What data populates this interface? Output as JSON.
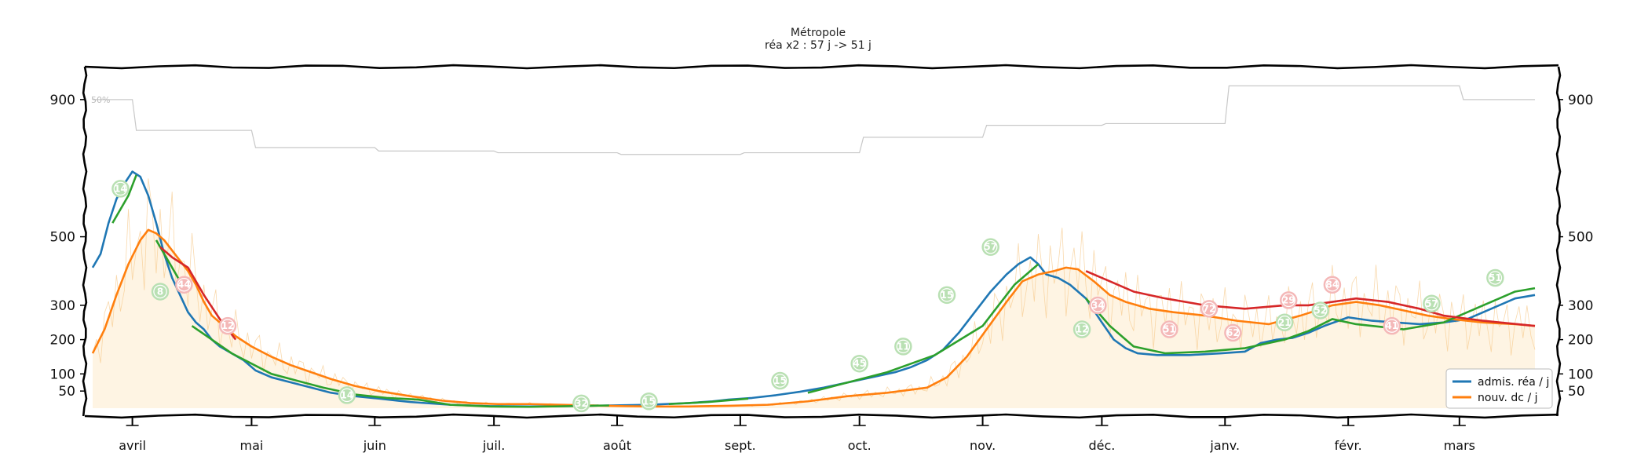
{
  "chart_data": {
    "type": "line",
    "title": "Métropole",
    "subtitle": "réa x2 : 57 j -> 51 j",
    "ylim": [
      0,
      950
    ],
    "yticks": [
      50,
      100,
      200,
      300,
      500,
      900
    ],
    "ytick_labels": [
      "50",
      "100",
      "200",
      "300",
      "500",
      "900"
    ],
    "months": [
      "avril",
      "mai",
      "juin",
      "juil.",
      "août",
      "sept.",
      "oct.",
      "nov.",
      "déc.",
      "janv.",
      "févr.",
      "mars"
    ],
    "x_start_day": 0,
    "x_end_day": 363,
    "month_start_days": [
      10,
      40,
      71,
      101,
      132,
      163,
      193,
      224,
      254,
      285,
      316,
      344
    ],
    "reference_label": "50%",
    "reference_line": [
      [
        0,
        900
      ],
      [
        10,
        900
      ],
      [
        11,
        810
      ],
      [
        40,
        810
      ],
      [
        41,
        760
      ],
      [
        71,
        760
      ],
      [
        72,
        750
      ],
      [
        101,
        750
      ],
      [
        102,
        745
      ],
      [
        132,
        745
      ],
      [
        133,
        740
      ],
      [
        163,
        740
      ],
      [
        164,
        745
      ],
      [
        193,
        745
      ],
      [
        194,
        790
      ],
      [
        224,
        790
      ],
      [
        225,
        825
      ],
      [
        254,
        825
      ],
      [
        255,
        830
      ],
      [
        285,
        830
      ],
      [
        286,
        940
      ],
      [
        344,
        940
      ],
      [
        345,
        900
      ],
      [
        363,
        900
      ]
    ],
    "daily_deaths_label": "nouv. dc / j (daily)",
    "series": [
      {
        "name": "admis. réa / j",
        "color": "#1f77b4",
        "points": [
          [
            0,
            410
          ],
          [
            2,
            450
          ],
          [
            4,
            540
          ],
          [
            6,
            610
          ],
          [
            8,
            655
          ],
          [
            10,
            690
          ],
          [
            12,
            675
          ],
          [
            14,
            620
          ],
          [
            16,
            540
          ],
          [
            18,
            450
          ],
          [
            20,
            380
          ],
          [
            22,
            330
          ],
          [
            24,
            280
          ],
          [
            26,
            250
          ],
          [
            28,
            230
          ],
          [
            30,
            200
          ],
          [
            32,
            180
          ],
          [
            35,
            160
          ],
          [
            38,
            140
          ],
          [
            41,
            110
          ],
          [
            45,
            90
          ],
          [
            50,
            75
          ],
          [
            55,
            60
          ],
          [
            60,
            45
          ],
          [
            66,
            35
          ],
          [
            72,
            28
          ],
          [
            80,
            18
          ],
          [
            90,
            10
          ],
          [
            100,
            6
          ],
          [
            110,
            5
          ],
          [
            120,
            6
          ],
          [
            130,
            8
          ],
          [
            140,
            10
          ],
          [
            150,
            15
          ],
          [
            156,
            20
          ],
          [
            160,
            25
          ],
          [
            166,
            30
          ],
          [
            172,
            38
          ],
          [
            178,
            48
          ],
          [
            184,
            60
          ],
          [
            190,
            75
          ],
          [
            196,
            90
          ],
          [
            202,
            105
          ],
          [
            206,
            120
          ],
          [
            210,
            140
          ],
          [
            214,
            170
          ],
          [
            218,
            220
          ],
          [
            222,
            280
          ],
          [
            226,
            340
          ],
          [
            230,
            390
          ],
          [
            233,
            420
          ],
          [
            236,
            440
          ],
          [
            238,
            420
          ],
          [
            240,
            390
          ],
          [
            243,
            380
          ],
          [
            246,
            360
          ],
          [
            250,
            320
          ],
          [
            254,
            250
          ],
          [
            257,
            200
          ],
          [
            260,
            175
          ],
          [
            263,
            160
          ],
          [
            268,
            155
          ],
          [
            276,
            155
          ],
          [
            284,
            160
          ],
          [
            290,
            165
          ],
          [
            294,
            190
          ],
          [
            298,
            200
          ],
          [
            302,
            205
          ],
          [
            306,
            220
          ],
          [
            310,
            240
          ],
          [
            316,
            265
          ],
          [
            322,
            255
          ],
          [
            328,
            250
          ],
          [
            334,
            245
          ],
          [
            340,
            250
          ],
          [
            346,
            260
          ],
          [
            352,
            290
          ],
          [
            358,
            320
          ],
          [
            363,
            330
          ]
        ]
      },
      {
        "name": "nouv. dc / j",
        "color": "#ff7f0e",
        "points": [
          [
            0,
            160
          ],
          [
            3,
            230
          ],
          [
            6,
            330
          ],
          [
            9,
            420
          ],
          [
            12,
            490
          ],
          [
            14,
            520
          ],
          [
            16,
            510
          ],
          [
            18,
            490
          ],
          [
            20,
            460
          ],
          [
            22,
            430
          ],
          [
            24,
            400
          ],
          [
            26,
            360
          ],
          [
            28,
            310
          ],
          [
            30,
            270
          ],
          [
            33,
            240
          ],
          [
            36,
            210
          ],
          [
            40,
            180
          ],
          [
            45,
            150
          ],
          [
            50,
            125
          ],
          [
            55,
            105
          ],
          [
            60,
            85
          ],
          [
            66,
            65
          ],
          [
            72,
            50
          ],
          [
            80,
            35
          ],
          [
            88,
            22
          ],
          [
            95,
            15
          ],
          [
            102,
            12
          ],
          [
            110,
            12
          ],
          [
            118,
            10
          ],
          [
            126,
            8
          ],
          [
            134,
            6
          ],
          [
            142,
            5
          ],
          [
            150,
            5
          ],
          [
            160,
            7
          ],
          [
            170,
            10
          ],
          [
            180,
            20
          ],
          [
            190,
            35
          ],
          [
            200,
            45
          ],
          [
            210,
            60
          ],
          [
            215,
            90
          ],
          [
            220,
            150
          ],
          [
            225,
            230
          ],
          [
            230,
            310
          ],
          [
            234,
            370
          ],
          [
            238,
            390
          ],
          [
            242,
            400
          ],
          [
            245,
            410
          ],
          [
            248,
            405
          ],
          [
            252,
            370
          ],
          [
            256,
            330
          ],
          [
            260,
            310
          ],
          [
            266,
            290
          ],
          [
            272,
            280
          ],
          [
            280,
            270
          ],
          [
            288,
            255
          ],
          [
            296,
            245
          ],
          [
            304,
            270
          ],
          [
            312,
            300
          ],
          [
            318,
            310
          ],
          [
            324,
            300
          ],
          [
            330,
            285
          ],
          [
            336,
            270
          ],
          [
            342,
            260
          ],
          [
            350,
            250
          ],
          [
            358,
            245
          ],
          [
            363,
            240
          ]
        ]
      }
    ],
    "trend_segments": [
      {
        "color": "#2ca02c",
        "points": [
          [
            5,
            540
          ],
          [
            9,
            620
          ],
          [
            11,
            680
          ]
        ]
      },
      {
        "color": "#2ca02c",
        "points": [
          [
            16,
            490
          ],
          [
            19,
            430
          ],
          [
            22,
            370
          ]
        ]
      },
      {
        "color": "#2ca02c",
        "points": [
          [
            25,
            240
          ],
          [
            35,
            160
          ],
          [
            45,
            100
          ],
          [
            58,
            60
          ],
          [
            66,
            40
          ],
          [
            74,
            30
          ],
          [
            82,
            25
          ],
          [
            90,
            10
          ],
          [
            100,
            5
          ],
          [
            110,
            4
          ],
          [
            120,
            6
          ],
          [
            130,
            8
          ]
        ]
      },
      {
        "color": "#2ca02c",
        "points": [
          [
            145,
            12
          ],
          [
            155,
            18
          ],
          [
            165,
            28
          ]
        ]
      },
      {
        "color": "#2ca02c",
        "points": [
          [
            180,
            45
          ],
          [
            190,
            75
          ],
          [
            200,
            105
          ],
          [
            212,
            155
          ],
          [
            224,
            240
          ],
          [
            232,
            360
          ],
          [
            238,
            420
          ]
        ]
      },
      {
        "color": "#2ca02c",
        "points": [
          [
            250,
            320
          ],
          [
            256,
            240
          ],
          [
            262,
            180
          ],
          [
            270,
            160
          ],
          [
            280,
            165
          ],
          [
            290,
            175
          ],
          [
            300,
            200
          ],
          [
            306,
            225
          ],
          [
            312,
            260
          ],
          [
            318,
            245
          ],
          [
            330,
            230
          ],
          [
            340,
            250
          ],
          [
            350,
            300
          ],
          [
            358,
            340
          ],
          [
            363,
            350
          ]
        ]
      },
      {
        "color": "#d62728",
        "points": [
          [
            17,
            470
          ],
          [
            20,
            440
          ],
          [
            24,
            410
          ],
          [
            28,
            330
          ],
          [
            32,
            260
          ],
          [
            36,
            200
          ]
        ]
      },
      {
        "color": "#d62728",
        "points": [
          [
            250,
            400
          ],
          [
            256,
            370
          ],
          [
            262,
            340
          ],
          [
            270,
            320
          ],
          [
            280,
            300
          ],
          [
            290,
            290
          ],
          [
            300,
            300
          ],
          [
            306,
            300
          ],
          [
            312,
            310
          ],
          [
            318,
            320
          ],
          [
            326,
            310
          ],
          [
            334,
            290
          ],
          [
            340,
            270
          ],
          [
            350,
            255
          ],
          [
            363,
            240
          ]
        ]
      }
    ],
    "annotations": [
      {
        "day": 7,
        "value": 640,
        "label": "14",
        "color": "#2ca02c"
      },
      {
        "day": 17,
        "value": 340,
        "label": "8",
        "color": "#2ca02c"
      },
      {
        "day": 23,
        "value": 360,
        "label": "44",
        "color": "#d62728"
      },
      {
        "day": 34,
        "value": 240,
        "label": "12",
        "color": "#d62728"
      },
      {
        "day": 64,
        "value": 38,
        "label": "14",
        "color": "#2ca02c"
      },
      {
        "day": 123,
        "value": 14,
        "label": "32",
        "color": "#2ca02c"
      },
      {
        "day": 140,
        "value": 20,
        "label": "15",
        "color": "#2ca02c"
      },
      {
        "day": 173,
        "value": 80,
        "label": "15",
        "color": "#2ca02c"
      },
      {
        "day": 193,
        "value": 130,
        "label": "45",
        "color": "#2ca02c"
      },
      {
        "day": 204,
        "value": 180,
        "label": "11",
        "color": "#2ca02c"
      },
      {
        "day": 215,
        "value": 330,
        "label": "15",
        "color": "#2ca02c"
      },
      {
        "day": 226,
        "value": 470,
        "label": "57",
        "color": "#2ca02c"
      },
      {
        "day": 249,
        "value": 230,
        "label": "12",
        "color": "#2ca02c"
      },
      {
        "day": 253,
        "value": 300,
        "label": "34",
        "color": "#d62728"
      },
      {
        "day": 271,
        "value": 230,
        "label": "51",
        "color": "#d62728"
      },
      {
        "day": 281,
        "value": 290,
        "label": "72",
        "color": "#d62728"
      },
      {
        "day": 287,
        "value": 220,
        "label": "62",
        "color": "#d62728"
      },
      {
        "day": 300,
        "value": 250,
        "label": "21",
        "color": "#2ca02c"
      },
      {
        "day": 301,
        "value": 315,
        "label": "29",
        "color": "#d62728"
      },
      {
        "day": 309,
        "value": 285,
        "label": "52",
        "color": "#2ca02c"
      },
      {
        "day": 312,
        "value": 360,
        "label": "84",
        "color": "#d62728"
      },
      {
        "day": 327,
        "value": 240,
        "label": "41",
        "color": "#d62728"
      },
      {
        "day": 337,
        "value": 305,
        "label": "57",
        "color": "#2ca02c"
      },
      {
        "day": 353,
        "value": 380,
        "label": "51",
        "color": "#2ca02c"
      }
    ],
    "legend": {
      "placement": "bottom-right",
      "entries": [
        {
          "label": "admis. réa / j",
          "color": "#1f77b4"
        },
        {
          "label": "nouv. dc / j",
          "color": "#ff7f0e"
        }
      ]
    },
    "grid": false
  }
}
